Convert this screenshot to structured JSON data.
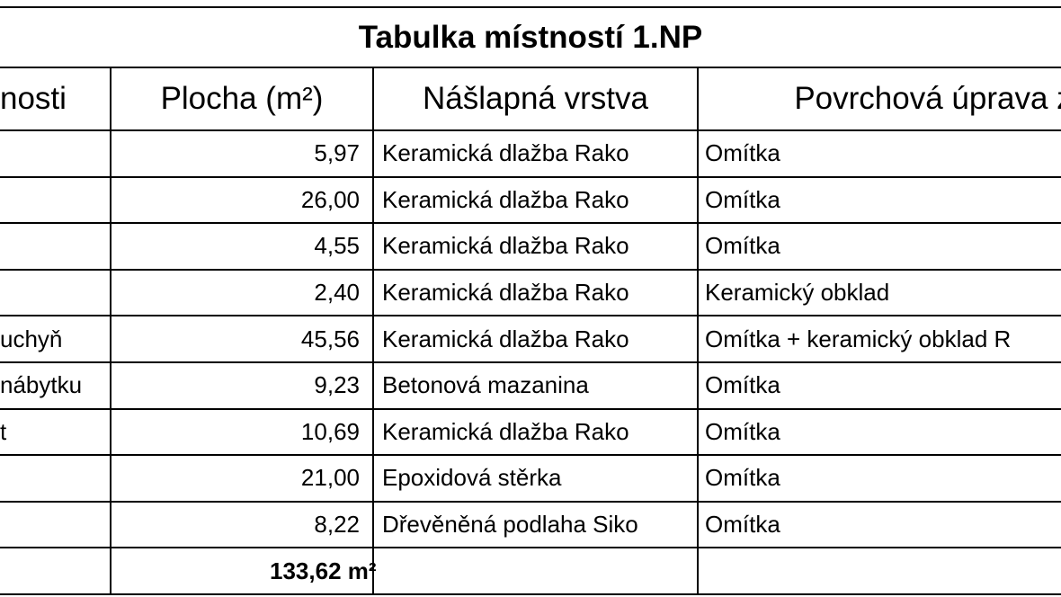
{
  "title": "Tabulka místností 1.NP",
  "header": [
    "nosti",
    "Plocha (m²)",
    "Nášlapná vrstva",
    "Povrchová úprava z"
  ],
  "rows": [
    {
      "area": "5,97",
      "floor": "Keramická dlažba Rako",
      "wall": "Omítka"
    },
    {
      "area": "26,00",
      "floor": "Keramická dlažba Rako",
      "wall": "Omítka"
    },
    {
      "area": "4,55",
      "floor": "Keramická dlažba Rako",
      "wall": "Omítka"
    },
    {
      "area": "2,40",
      "floor": "Keramická dlažba Rako",
      "wall": "Keramický obklad"
    },
    {
      "name": "uchyň",
      "area": "45,56",
      "floor": "Keramická dlažba Rako",
      "wall": "Omítka + keramický obklad R"
    },
    {
      "name": "nábytku",
      "area": "9,23",
      "floor": "Betonová mazanina",
      "wall": "Omítka"
    },
    {
      "name": "t",
      "area": "10,69",
      "floor": "Keramická dlažba Rako",
      "wall": "Omítka"
    },
    {
      "area": "21,00",
      "floor": "Epoxidová stěrka",
      "wall": "Omítka"
    },
    {
      "area": "8,22",
      "floor": "Dřevěněná podlaha Siko",
      "wall": "Omítka"
    }
  ],
  "total": "133,62 m²"
}
